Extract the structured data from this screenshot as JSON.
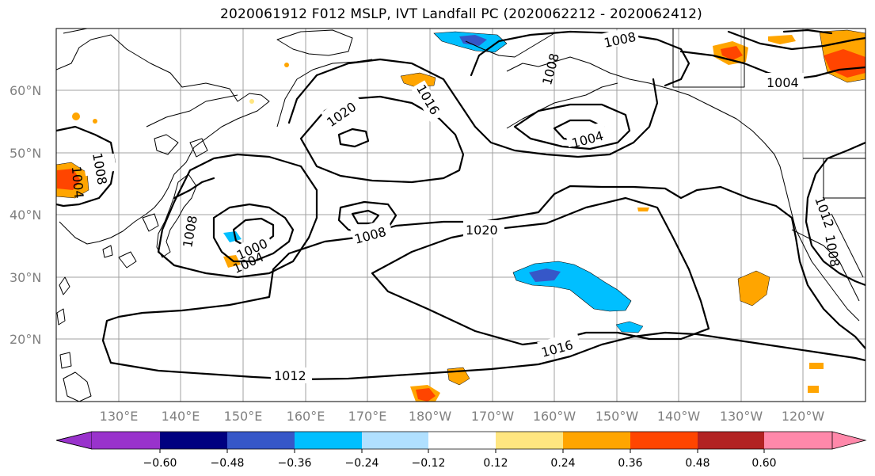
{
  "title": "2020061912 F012 MSLP, IVT Landfall PC (2020062212 - 2020062412)",
  "lat_labels": [
    "60°N",
    "50°N",
    "40°N",
    "30°N",
    "20°N"
  ],
  "lon_labels": [
    "130°E",
    "140°E",
    "150°E",
    "160°E",
    "170°E",
    "180°W",
    "170°W",
    "160°W",
    "150°W",
    "140°W",
    "130°W",
    "120°W"
  ],
  "contour_labels": [
    "1008",
    "1004",
    "1020",
    "1016",
    "1004",
    "1004",
    "1008",
    "1008",
    "1008",
    "1020",
    "1000",
    "1004",
    "1008",
    "1016",
    "1012",
    "1012",
    "1008"
  ],
  "colorbar": {
    "ticks": [
      "−0.60",
      "−0.48",
      "−0.36",
      "−0.24",
      "−0.12",
      "0.12",
      "0.24",
      "0.36",
      "0.48",
      "0.60"
    ],
    "colors": [
      "#9932cc",
      "#000080",
      "#3657c8",
      "#00bfff",
      "#b0e0ff",
      "#ffffff",
      "#ffe680",
      "#ffa500",
      "#ff4500",
      "#b22222",
      "#ff88aa"
    ]
  }
}
